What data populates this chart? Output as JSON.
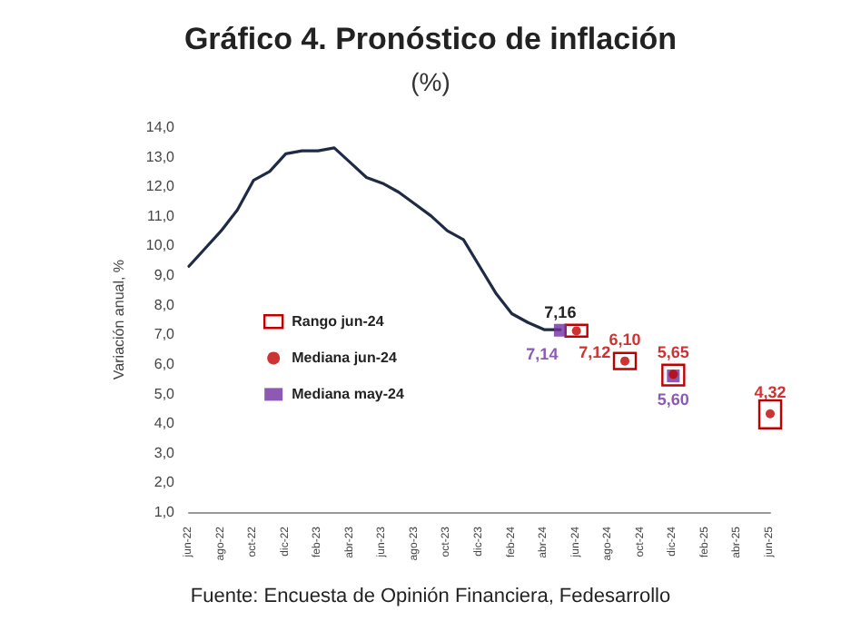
{
  "chart_data": {
    "type": "line",
    "title": "Gráfico 4. Pronóstico de inflación",
    "subtitle": "(%)",
    "ylabel": "Variación anual, %",
    "categories": [
      "jun-22",
      null,
      "ago-22",
      null,
      "oct-22",
      null,
      "dic-22",
      null,
      "feb-23",
      null,
      "abr-23",
      null,
      "jun-23",
      null,
      "ago-23",
      null,
      "oct-23",
      null,
      "dic-23",
      null,
      "feb-24",
      null,
      "abr-24",
      null,
      "jun-24",
      null,
      "ago-24",
      null,
      "oct-24",
      null,
      "dic-24",
      null,
      "feb-25",
      null,
      "abr-25",
      null,
      "jun-25"
    ],
    "series": [
      {
        "type": "bar",
        "name": "Rango jun-24",
        "color": "#c00000",
        "base": [
          null,
          null,
          null,
          null,
          null,
          null,
          null,
          null,
          null,
          null,
          null,
          null,
          null,
          null,
          null,
          null,
          null,
          null,
          null,
          null,
          null,
          null,
          null,
          null,
          7.05,
          null,
          null,
          5.95,
          null,
          null,
          5.4,
          null,
          null,
          null,
          null,
          null,
          3.95
        ],
        "values": [
          null,
          null,
          null,
          null,
          null,
          null,
          null,
          null,
          null,
          null,
          null,
          null,
          null,
          null,
          null,
          null,
          null,
          null,
          null,
          null,
          null,
          null,
          null,
          null,
          0.15,
          null,
          null,
          0.3,
          null,
          null,
          0.45,
          null,
          null,
          null,
          null,
          null,
          0.7
        ]
      },
      {
        "color": "#1f2a44",
        "marker": "none",
        "values": [
          9.3,
          9.9,
          10.5,
          11.2,
          12.2,
          12.5,
          13.1,
          13.2,
          13.2,
          13.3,
          12.8,
          12.3,
          12.1,
          11.8,
          11.4,
          11.0,
          10.5,
          10.2,
          9.3,
          8.4,
          7.7,
          7.4,
          7.16,
          7.16,
          null,
          null,
          null,
          null,
          null,
          null,
          null,
          null,
          null,
          null,
          null,
          null,
          null
        ],
        "value_labels": [
          null,
          null,
          null,
          null,
          null,
          null,
          null,
          null,
          null,
          null,
          null,
          null,
          null,
          null,
          null,
          null,
          null,
          null,
          null,
          null,
          null,
          null,
          null,
          "7,16",
          null,
          null,
          null,
          null,
          null,
          null,
          null,
          null,
          null,
          null,
          null,
          null,
          null
        ]
      },
      {
        "type": "scatter",
        "name": "Mediana jun-24",
        "color": "#c00000",
        "marker": "circle",
        "values": [
          null,
          null,
          null,
          null,
          null,
          null,
          null,
          null,
          null,
          null,
          null,
          null,
          null,
          null,
          null,
          null,
          null,
          null,
          null,
          null,
          null,
          null,
          null,
          null,
          7.12,
          null,
          null,
          6.1,
          null,
          null,
          5.65,
          null,
          null,
          null,
          null,
          null,
          4.32
        ],
        "value_labels": [
          null,
          null,
          null,
          null,
          null,
          null,
          null,
          null,
          null,
          null,
          null,
          null,
          null,
          null,
          null,
          null,
          null,
          null,
          null,
          null,
          null,
          null,
          null,
          null,
          "7,12",
          null,
          null,
          "6,10",
          null,
          null,
          "5,65",
          null,
          null,
          null,
          null,
          null,
          "4,32"
        ]
      },
      {
        "type": "scatter",
        "name": "Mediana may-24",
        "color": "#7030a0",
        "marker": "square",
        "values": [
          null,
          null,
          null,
          null,
          null,
          null,
          null,
          null,
          null,
          null,
          null,
          null,
          null,
          null,
          null,
          null,
          null,
          null,
          null,
          null,
          null,
          null,
          null,
          7.14,
          null,
          null,
          null,
          null,
          null,
          null,
          5.6,
          null,
          null,
          null,
          null,
          null,
          null
        ],
        "value_labels": [
          null,
          null,
          null,
          null,
          null,
          null,
          null,
          null,
          null,
          null,
          null,
          null,
          null,
          null,
          null,
          null,
          null,
          null,
          null,
          null,
          null,
          null,
          null,
          "7,14",
          null,
          null,
          null,
          null,
          null,
          null,
          "5,60",
          null,
          null,
          null,
          null,
          null,
          null
        ]
      }
    ],
    "ylim": [
      1,
      14
    ],
    "yticks": [
      {
        "value": 1,
        "label": "1,0"
      },
      {
        "value": 2,
        "label": "2,0"
      },
      {
        "value": 3,
        "label": "3,0"
      },
      {
        "value": 4,
        "label": "4,0"
      },
      {
        "value": 5,
        "label": "5,0"
      },
      {
        "value": 6,
        "label": "6,0"
      },
      {
        "value": 7,
        "label": "7,0"
      },
      {
        "value": 8,
        "label": "8,0"
      },
      {
        "value": 9,
        "label": "9,0"
      },
      {
        "value": 10,
        "label": "10,0"
      },
      {
        "value": 11,
        "label": "11,0"
      },
      {
        "value": 12,
        "label": "12,0"
      },
      {
        "value": 13,
        "label": "13,0"
      },
      {
        "value": 14,
        "label": "14,0"
      }
    ],
    "grid": false,
    "legend": "center left",
    "annotations": [
      "Fuente: Encuesta de Opinión Financiera, Fedesarrollo"
    ]
  }
}
